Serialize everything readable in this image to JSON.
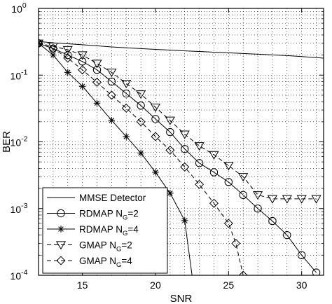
{
  "chart_data": {
    "type": "line",
    "title": "",
    "xlabel": "SNR",
    "ylabel": "BER",
    "xlim": [
      12,
      31.5
    ],
    "ylim": [
      0.0001,
      1
    ],
    "yscale": "log",
    "grid": true,
    "legend_position": "bottom-left",
    "x_ticks": [
      15,
      20,
      25,
      30
    ],
    "x_tick_labels": [
      "15",
      "20",
      "25",
      "30"
    ],
    "y_ticks": [
      0.0001,
      0.001,
      0.01,
      0.1,
      1
    ],
    "y_tick_labels": [
      {
        "base": "10",
        "exp": "-4"
      },
      {
        "base": "10",
        "exp": "-3"
      },
      {
        "base": "10",
        "exp": "-2"
      },
      {
        "base": "10",
        "exp": "-1"
      },
      {
        "base": "10",
        "exp": "0"
      }
    ],
    "series": [
      {
        "name": "MMSE Detector",
        "label_main": "MMSE Detector",
        "label_sub": "",
        "label_tail": "",
        "marker": "none",
        "dash": false,
        "x": [
          12,
          13,
          14,
          15,
          16,
          17,
          18,
          19,
          20,
          21,
          22,
          23,
          24,
          25,
          26,
          27,
          28,
          29,
          30,
          31.5
        ],
        "y": [
          0.32,
          0.305,
          0.295,
          0.285,
          0.275,
          0.265,
          0.257,
          0.25,
          0.243,
          0.237,
          0.231,
          0.226,
          0.221,
          0.216,
          0.211,
          0.206,
          0.201,
          0.196,
          0.19,
          0.18
        ]
      },
      {
        "name": "RDMAP NG=2",
        "label_main": "RDMAP N",
        "label_sub": "G",
        "label_tail": "=2",
        "marker": "circle",
        "dash": false,
        "x": [
          12,
          13,
          14,
          15,
          16,
          17,
          18,
          19,
          20,
          21,
          22,
          23,
          24,
          25,
          26,
          27,
          28,
          29,
          30,
          31
        ],
        "y": [
          0.3,
          0.25,
          0.2,
          0.16,
          0.12,
          0.08,
          0.053,
          0.035,
          0.022,
          0.014,
          0.0078,
          0.0048,
          0.0035,
          0.0025,
          0.0016,
          0.001,
          0.00065,
          0.0004,
          0.0002,
          0.00011
        ]
      },
      {
        "name": "RDMAP NG=4",
        "label_main": "RDMAP N",
        "label_sub": "G",
        "label_tail": "=4",
        "marker": "star",
        "dash": false,
        "x": [
          12,
          13,
          14,
          15,
          16,
          17,
          18,
          19,
          20,
          21,
          22,
          22.5
        ],
        "y": [
          0.3,
          0.2,
          0.11,
          0.068,
          0.038,
          0.021,
          0.012,
          0.0068,
          0.0035,
          0.0017,
          0.00066,
          0.0001
        ]
      },
      {
        "name": "GMAP NG=2",
        "label_main": "GMAP N",
        "label_sub": "G",
        "label_tail": "=2",
        "marker": "triangle-down",
        "dash": true,
        "x": [
          12,
          13,
          14,
          15,
          16,
          17,
          18,
          19,
          20,
          21,
          22,
          23,
          24,
          25,
          26,
          27,
          28,
          29,
          30,
          31
        ],
        "y": [
          0.3,
          0.27,
          0.24,
          0.2,
          0.15,
          0.11,
          0.075,
          0.052,
          0.033,
          0.021,
          0.013,
          0.0087,
          0.0064,
          0.0044,
          0.003,
          0.0016,
          0.0014,
          0.0014,
          0.0014,
          0.0014
        ]
      },
      {
        "name": "GMAP NG=4",
        "label_main": "GMAP N",
        "label_sub": "G",
        "label_tail": "=4",
        "marker": "diamond",
        "dash": true,
        "x": [
          12,
          13,
          14,
          15,
          16,
          17,
          18,
          19,
          20,
          21,
          22,
          23,
          24,
          25,
          25.5,
          26
        ],
        "y": [
          0.3,
          0.25,
          0.18,
          0.12,
          0.078,
          0.05,
          0.032,
          0.02,
          0.012,
          0.0075,
          0.0042,
          0.0023,
          0.0012,
          0.0006,
          0.0003,
          0.0001
        ]
      }
    ]
  }
}
